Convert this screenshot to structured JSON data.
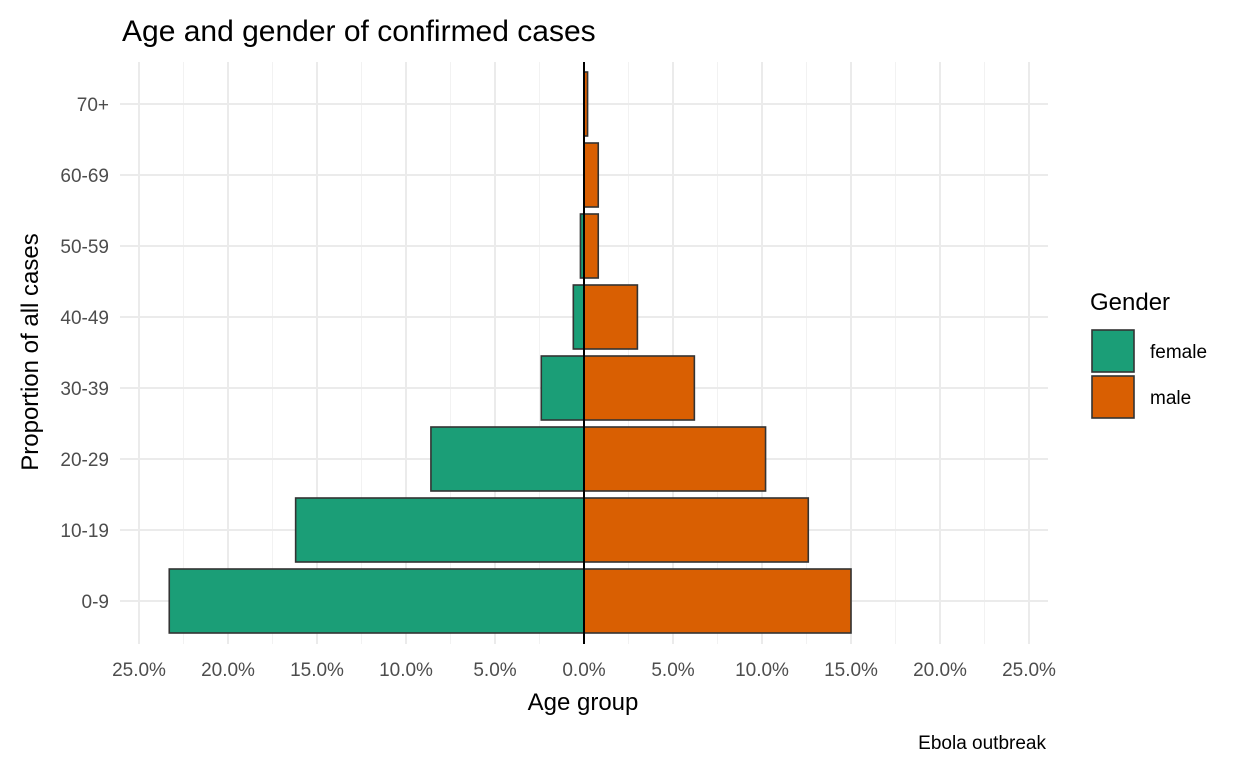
{
  "chart_data": {
    "type": "bar",
    "orientation": "horizontal",
    "title": "Age and gender of confirmed cases",
    "xlabel": "Age group",
    "ylabel": "Proportion of all cases",
    "caption": "Ebola outbreak",
    "legend_title": "Gender",
    "legend_position": "right",
    "grid": true,
    "xlim": [
      -25,
      25
    ],
    "x_ticks": [
      -25,
      -20,
      -15,
      -10,
      -5,
      0,
      5,
      10,
      15,
      20,
      25
    ],
    "x_tick_labels": [
      "25.0%",
      "20.0%",
      "15.0%",
      "10.0%",
      "5.0%",
      "0.0%",
      "5.0%",
      "10.0%",
      "15.0%",
      "20.0%",
      "25.0%"
    ],
    "categories": [
      "0-9",
      "10-19",
      "20-29",
      "30-39",
      "40-49",
      "50-59",
      "60-69",
      "70+"
    ],
    "series": [
      {
        "name": "female",
        "color": "#1b9e77",
        "values": [
          -23.3,
          -16.2,
          -8.6,
          -2.4,
          -0.6,
          -0.2,
          0.0,
          0.0
        ]
      },
      {
        "name": "male",
        "color": "#d95f02",
        "values": [
          15.0,
          12.6,
          10.2,
          6.2,
          3.0,
          0.8,
          0.8,
          0.2
        ]
      }
    ]
  }
}
